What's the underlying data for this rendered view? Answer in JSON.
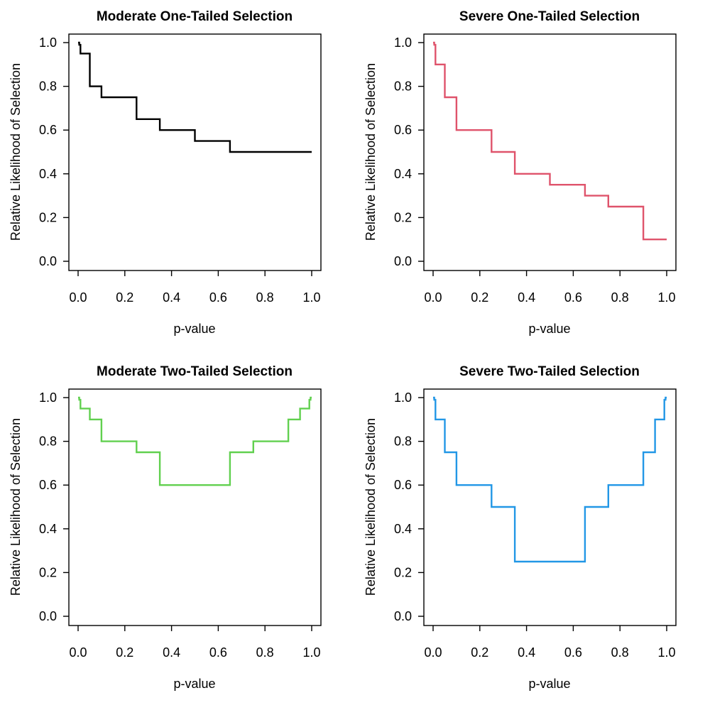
{
  "figure": {
    "background": "#ffffff",
    "layout": "2x2-grid",
    "text_color": "#000000"
  },
  "axes_shared": {
    "xlabel": "p-value",
    "ylabel": "Relative Likelihood of Selection",
    "xtick_labels": [
      "0.0",
      "0.2",
      "0.4",
      "0.6",
      "0.8",
      "1.0"
    ],
    "ytick_labels": [
      "0.0",
      "0.2",
      "0.4",
      "0.6",
      "0.8",
      "1.0"
    ],
    "xtick_values": [
      0,
      0.2,
      0.4,
      0.6,
      0.8,
      1.0
    ],
    "ytick_values": [
      0,
      0.2,
      0.4,
      0.6,
      0.8,
      1.0
    ],
    "xlim": [
      0,
      1
    ],
    "ylim": [
      0,
      1
    ],
    "grid": false,
    "legend": "none"
  },
  "chart_data": [
    {
      "type": "line",
      "subtype": "step",
      "title": "Moderate One-Tailed Selection",
      "xlabel": "p-value",
      "ylabel": "Relative Likelihood of Selection",
      "color": "#000000",
      "xlim": [
        0,
        1
      ],
      "ylim": [
        0,
        1
      ],
      "x_breakpoints": [
        0,
        0.005,
        0.01,
        0.05,
        0.1,
        0.25,
        0.35,
        0.5,
        0.65,
        0.75,
        0.9,
        0.95,
        0.99,
        0.995,
        1.0
      ],
      "interval_weights": [
        1.0,
        0.99,
        0.95,
        0.8,
        0.75,
        0.65,
        0.6,
        0.55,
        0.5,
        0.5,
        0.5,
        0.5,
        0.5,
        0.5
      ]
    },
    {
      "type": "line",
      "subtype": "step",
      "title": "Severe One-Tailed Selection",
      "xlabel": "p-value",
      "ylabel": "Relative Likelihood of Selection",
      "color": "#DF536B",
      "xlim": [
        0,
        1
      ],
      "ylim": [
        0,
        1
      ],
      "x_breakpoints": [
        0,
        0.005,
        0.01,
        0.05,
        0.1,
        0.25,
        0.35,
        0.5,
        0.65,
        0.75,
        0.9,
        0.95,
        0.99,
        0.995,
        1.0
      ],
      "interval_weights": [
        1.0,
        0.99,
        0.9,
        0.75,
        0.6,
        0.5,
        0.4,
        0.35,
        0.3,
        0.25,
        0.1,
        0.1,
        0.1,
        0.1
      ]
    },
    {
      "type": "line",
      "subtype": "step",
      "title": "Moderate Two-Tailed Selection",
      "xlabel": "p-value",
      "ylabel": "Relative Likelihood of Selection",
      "color": "#61D04F",
      "xlim": [
        0,
        1
      ],
      "ylim": [
        0,
        1
      ],
      "x_breakpoints": [
        0,
        0.005,
        0.01,
        0.05,
        0.1,
        0.25,
        0.35,
        0.5,
        0.65,
        0.75,
        0.9,
        0.95,
        0.99,
        0.995,
        1.0
      ],
      "interval_weights": [
        1.0,
        0.99,
        0.95,
        0.9,
        0.8,
        0.75,
        0.6,
        0.6,
        0.75,
        0.8,
        0.9,
        0.95,
        0.99,
        1.0
      ]
    },
    {
      "type": "line",
      "subtype": "step",
      "title": "Severe Two-Tailed Selection",
      "xlabel": "p-value",
      "ylabel": "Relative Likelihood of Selection",
      "color": "#2297E6",
      "xlim": [
        0,
        1
      ],
      "ylim": [
        0,
        1
      ],
      "x_breakpoints": [
        0,
        0.005,
        0.01,
        0.05,
        0.1,
        0.25,
        0.35,
        0.5,
        0.65,
        0.75,
        0.9,
        0.95,
        0.99,
        0.995,
        1.0
      ],
      "interval_weights": [
        1.0,
        0.99,
        0.9,
        0.75,
        0.6,
        0.5,
        0.25,
        0.25,
        0.5,
        0.6,
        0.75,
        0.9,
        0.99,
        1.0
      ]
    }
  ]
}
